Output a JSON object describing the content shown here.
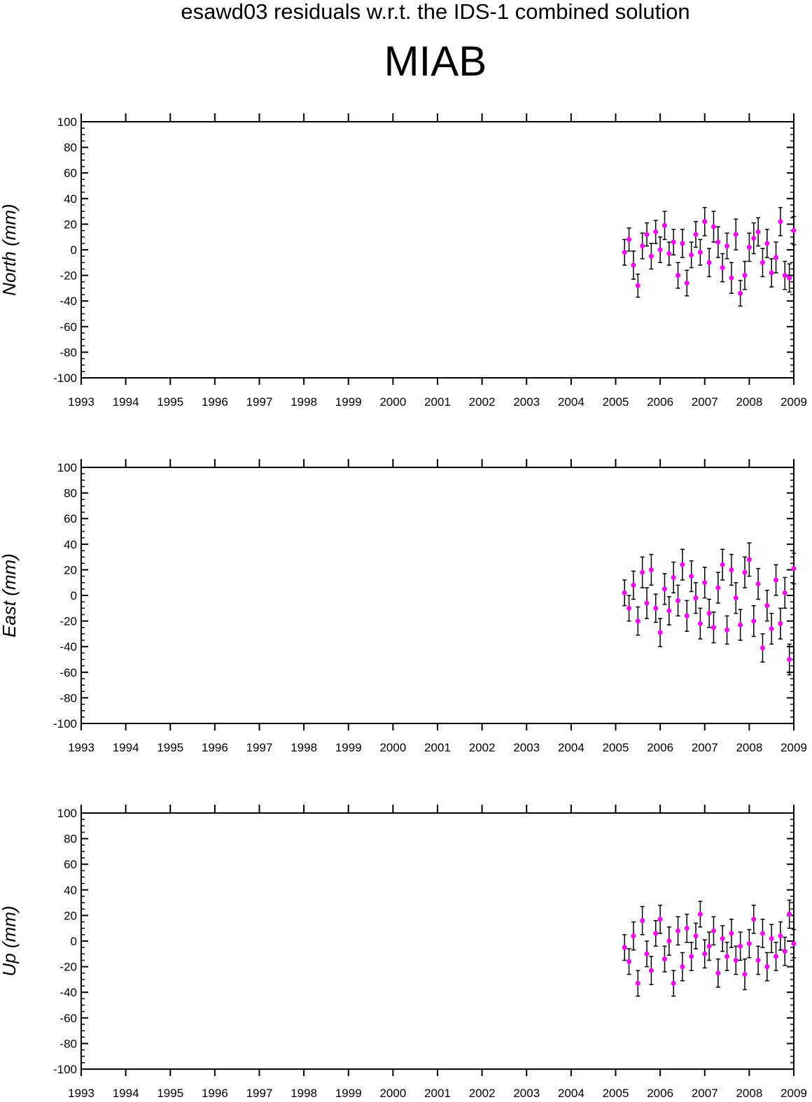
{
  "figure": {
    "subtitle": "esawd03 residuals w.r.t. the IDS-1 combined solution",
    "title": "MIAB"
  },
  "style": {
    "point_color": "#ff00ff",
    "errorbar_color": "#000000"
  },
  "chart_data": [
    {
      "type": "scatter",
      "ylabel": "North (mm)",
      "xlim": [
        1993,
        2009
      ],
      "ylim": [
        -100,
        100
      ],
      "xticks": [
        "1993",
        "1994",
        "1995",
        "1996",
        "1997",
        "1998",
        "1999",
        "2000",
        "2001",
        "2002",
        "2003",
        "2004",
        "2005",
        "2006",
        "2007",
        "2008",
        "2009"
      ],
      "yticks": [
        "100",
        "80",
        "60",
        "40",
        "20",
        "0",
        "-20",
        "-40",
        "-60",
        "-80",
        "-100"
      ],
      "error_bars": true,
      "x": [
        2005.2,
        2005.3,
        2005.4,
        2005.5,
        2005.6,
        2005.7,
        2005.8,
        2005.9,
        2006.0,
        2006.1,
        2006.2,
        2006.3,
        2006.4,
        2006.5,
        2006.6,
        2006.7,
        2006.8,
        2006.9,
        2007.0,
        2007.1,
        2007.2,
        2007.3,
        2007.4,
        2007.5,
        2007.6,
        2007.7,
        2007.8,
        2007.9,
        2008.0,
        2008.1,
        2008.2,
        2008.3,
        2008.4,
        2008.5,
        2008.6,
        2008.7,
        2008.8,
        2008.9,
        2009.0
      ],
      "y": [
        -2,
        8,
        -12,
        -28,
        3,
        12,
        -5,
        14,
        0,
        19,
        -3,
        6,
        -20,
        5,
        -26,
        -4,
        12,
        -2,
        22,
        -10,
        18,
        6,
        -14,
        3,
        -22,
        12,
        -34,
        -20,
        2,
        9,
        14,
        -10,
        5,
        -18,
        -6,
        22,
        -20,
        -22,
        15
      ],
      "errors": [
        10,
        9,
        11,
        9,
        10,
        9,
        10,
        9,
        10,
        11,
        9,
        10,
        10,
        11,
        10,
        10,
        10,
        10,
        11,
        11,
        12,
        12,
        11,
        10,
        12,
        12,
        10,
        11,
        11,
        12,
        11,
        11,
        11,
        11,
        12,
        11,
        11,
        11,
        11
      ]
    },
    {
      "type": "scatter",
      "ylabel": "East (mm)",
      "xlim": [
        1993,
        2009
      ],
      "ylim": [
        -100,
        100
      ],
      "xticks": [
        "1993",
        "1994",
        "1995",
        "1996",
        "1997",
        "1998",
        "1999",
        "2000",
        "2001",
        "2002",
        "2003",
        "2004",
        "2005",
        "2006",
        "2007",
        "2008",
        "2009"
      ],
      "yticks": [
        "100",
        "80",
        "60",
        "40",
        "20",
        "0",
        "-20",
        "-40",
        "-60",
        "-80",
        "-100"
      ],
      "error_bars": true,
      "x": [
        2005.2,
        2005.3,
        2005.4,
        2005.5,
        2005.6,
        2005.7,
        2005.8,
        2005.9,
        2006.0,
        2006.1,
        2006.2,
        2006.3,
        2006.4,
        2006.5,
        2006.6,
        2006.7,
        2006.8,
        2006.9,
        2007.0,
        2007.1,
        2007.2,
        2007.3,
        2007.4,
        2007.5,
        2007.6,
        2007.7,
        2007.8,
        2007.9,
        2008.0,
        2008.1,
        2008.2,
        2008.3,
        2008.4,
        2008.5,
        2008.6,
        2008.7,
        2008.8,
        2008.9,
        2009.0
      ],
      "y": [
        2,
        -10,
        8,
        -20,
        18,
        -6,
        20,
        -10,
        -29,
        5,
        -12,
        14,
        -4,
        24,
        -16,
        15,
        -2,
        -22,
        10,
        -14,
        -25,
        6,
        24,
        -27,
        20,
        -2,
        -23,
        18,
        28,
        -20,
        9,
        -41,
        -8,
        -26,
        12,
        -22,
        2,
        -50,
        21
      ],
      "errors": [
        10,
        10,
        11,
        11,
        12,
        12,
        12,
        11,
        11,
        12,
        11,
        12,
        12,
        12,
        12,
        12,
        12,
        12,
        12,
        11,
        12,
        12,
        12,
        11,
        12,
        12,
        12,
        12,
        13,
        12,
        12,
        11,
        12,
        12,
        12,
        12,
        12,
        12,
        12
      ]
    },
    {
      "type": "scatter",
      "ylabel": "Up (mm)",
      "xlim": [
        1993,
        2009
      ],
      "ylim": [
        -100,
        100
      ],
      "xticks": [
        "1993",
        "1994",
        "1995",
        "1996",
        "1997",
        "1998",
        "1999",
        "2000",
        "2001",
        "2002",
        "2003",
        "2004",
        "2005",
        "2006",
        "2007",
        "2008",
        "2009"
      ],
      "yticks": [
        "100",
        "80",
        "60",
        "40",
        "20",
        "0",
        "-20",
        "-40",
        "-60",
        "-80",
        "-100"
      ],
      "error_bars": true,
      "x": [
        2005.2,
        2005.3,
        2005.4,
        2005.5,
        2005.6,
        2005.7,
        2005.8,
        2005.9,
        2006.0,
        2006.1,
        2006.2,
        2006.3,
        2006.4,
        2006.5,
        2006.6,
        2006.7,
        2006.8,
        2006.9,
        2007.0,
        2007.1,
        2007.2,
        2007.3,
        2007.4,
        2007.5,
        2007.6,
        2007.7,
        2007.8,
        2007.9,
        2008.0,
        2008.1,
        2008.2,
        2008.3,
        2008.4,
        2008.5,
        2008.6,
        2008.7,
        2008.8,
        2008.9,
        2009.0
      ],
      "y": [
        -5,
        -16,
        4,
        -33,
        16,
        -10,
        -23,
        6,
        17,
        -14,
        0,
        -33,
        8,
        -20,
        10,
        -12,
        4,
        21,
        -10,
        -4,
        8,
        -25,
        2,
        -12,
        6,
        -15,
        -4,
        -26,
        -2,
        17,
        -15,
        6,
        -20,
        2,
        -12,
        4,
        -8,
        21,
        -2
      ],
      "errors": [
        10,
        10,
        11,
        10,
        11,
        10,
        11,
        10,
        11,
        10,
        11,
        10,
        11,
        11,
        11,
        11,
        10,
        10,
        11,
        11,
        11,
        11,
        10,
        11,
        11,
        11,
        11,
        12,
        11,
        11,
        11,
        11,
        11,
        11,
        11,
        11,
        11,
        11,
        11
      ]
    }
  ]
}
